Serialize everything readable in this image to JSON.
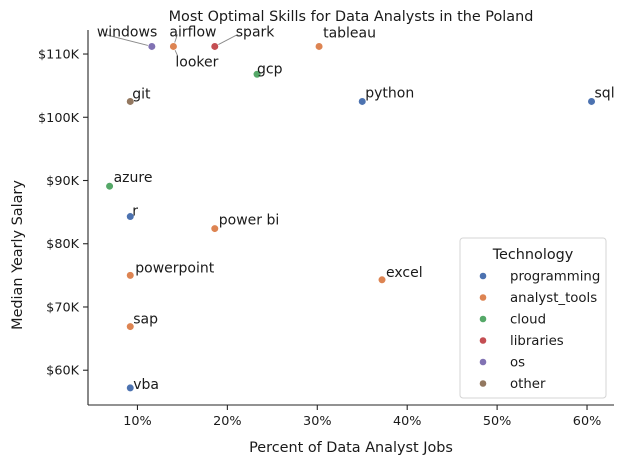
{
  "chart_data": {
    "type": "scatter",
    "title": "Most Optimal Skills for Data Analysts in the Poland",
    "xlabel": "Percent of Data Analyst Jobs",
    "ylabel": "Median Yearly Salary",
    "xlim": [
      4.5,
      63.0
    ],
    "ylim": [
      54.5,
      113.8
    ],
    "x_unit": "percent",
    "y_unit": "thousand USD",
    "xticks": [
      10,
      20,
      30,
      40,
      50,
      60
    ],
    "xtick_labels": [
      "10%",
      "20%",
      "30%",
      "40%",
      "50%",
      "60%"
    ],
    "yticks": [
      60,
      70,
      80,
      90,
      100,
      110
    ],
    "ytick_labels": [
      "$60K",
      "$70K",
      "$80K",
      "$90K",
      "$100K",
      "$110K"
    ],
    "grid": false,
    "legend": {
      "title": "Technology",
      "placement": "lower right",
      "entries": [
        {
          "name": "programming",
          "color": "#4c72b0"
        },
        {
          "name": "analyst_tools",
          "color": "#dd8452"
        },
        {
          "name": "cloud",
          "color": "#55a868"
        },
        {
          "name": "libraries",
          "color": "#c44e52"
        },
        {
          "name": "os",
          "color": "#8172b3"
        },
        {
          "name": "other",
          "color": "#937860"
        }
      ]
    },
    "points": [
      {
        "label": "sql",
        "x": 60.5,
        "y": 102.5,
        "category": "programming"
      },
      {
        "label": "python",
        "x": 35.0,
        "y": 102.5,
        "category": "programming"
      },
      {
        "label": "r",
        "x": 9.2,
        "y": 84.3,
        "category": "programming"
      },
      {
        "label": "vba",
        "x": 9.2,
        "y": 57.2,
        "category": "programming"
      },
      {
        "label": "tableau",
        "x": 30.2,
        "y": 111.2,
        "category": "analyst_tools"
      },
      {
        "label": "excel",
        "x": 37.2,
        "y": 74.3,
        "category": "analyst_tools"
      },
      {
        "label": "power bi",
        "x": 18.6,
        "y": 82.4,
        "category": "analyst_tools"
      },
      {
        "label": "powerpoint",
        "x": 9.2,
        "y": 75.0,
        "category": "analyst_tools"
      },
      {
        "label": "sap",
        "x": 9.2,
        "y": 66.9,
        "category": "analyst_tools"
      },
      {
        "label": "airflow",
        "x": 14.0,
        "y": 111.2,
        "category": "analyst_tools"
      },
      {
        "label": "looker",
        "x": 14.0,
        "y": 111.2,
        "category": "analyst_tools"
      },
      {
        "label": "gcp",
        "x": 23.3,
        "y": 106.8,
        "category": "cloud"
      },
      {
        "label": "azure",
        "x": 6.9,
        "y": 89.1,
        "category": "cloud"
      },
      {
        "label": "spark",
        "x": 18.6,
        "y": 111.2,
        "category": "libraries"
      },
      {
        "label": "windows",
        "x": 11.6,
        "y": 111.2,
        "category": "os"
      },
      {
        "label": "git",
        "x": 9.2,
        "y": 102.5,
        "category": "other"
      }
    ]
  }
}
